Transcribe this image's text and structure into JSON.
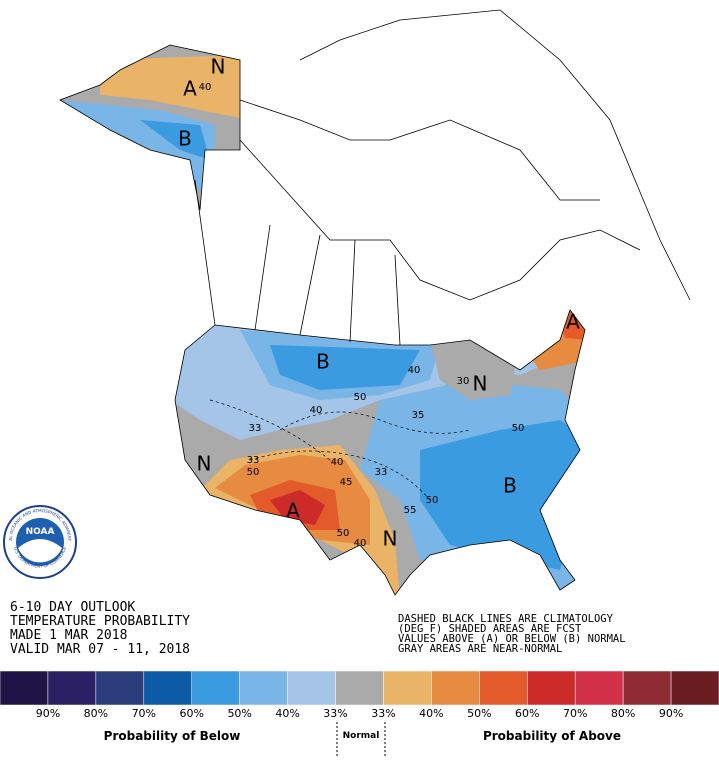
{
  "header": {
    "lines": [
      "6-10 DAY OUTLOOK",
      "TEMPERATURE PROBABILITY",
      "MADE  1 MAR 2018",
      "VALID  MAR 07 - 11, 2018"
    ]
  },
  "notes": [
    "DASHED BLACK LINES ARE CLIMATOLOGY",
    "(DEG F) SHADED AREAS ARE FCST",
    "VALUES ABOVE (A) OR BELOW (B) NORMAL",
    "GRAY AREAS ARE NEAR-NORMAL"
  ],
  "logo": {
    "name": "NOAA",
    "ring_top": "NATIONAL OCEANIC AND ATMOSPHERIC ADMINISTRATION",
    "ring_bottom": "U.S. DEPARTMENT OF COMMERCE"
  },
  "map_labels": [
    "A",
    "40",
    "B",
    "N",
    "B",
    "B",
    "A",
    "A",
    "N",
    "N",
    "N",
    "40",
    "50",
    "40",
    "35",
    "33",
    "50",
    "33",
    "50",
    "40",
    "33",
    "45",
    "50",
    "55",
    "50",
    "40",
    "30"
  ],
  "legend": {
    "colors": [
      "#1e1546",
      "#2a1f62",
      "#2b3d7a",
      "#0d5aa6",
      "#3b9be0",
      "#79b5e7",
      "#a4c4e8",
      "#aaaaaa",
      "#e9b467",
      "#e68b3f",
      "#e35b2a",
      "#cc2b2a",
      "#d23049",
      "#8f2b35",
      "#6b1e22"
    ],
    "labels": [
      "90%",
      "80%",
      "70%",
      "60%",
      "50%",
      "40%",
      "33%",
      "33%",
      "40%",
      "50%",
      "60%",
      "70%",
      "80%",
      "90%"
    ],
    "below": "Probability of Below",
    "normal": "Normal",
    "above": "Probability of Above"
  }
}
